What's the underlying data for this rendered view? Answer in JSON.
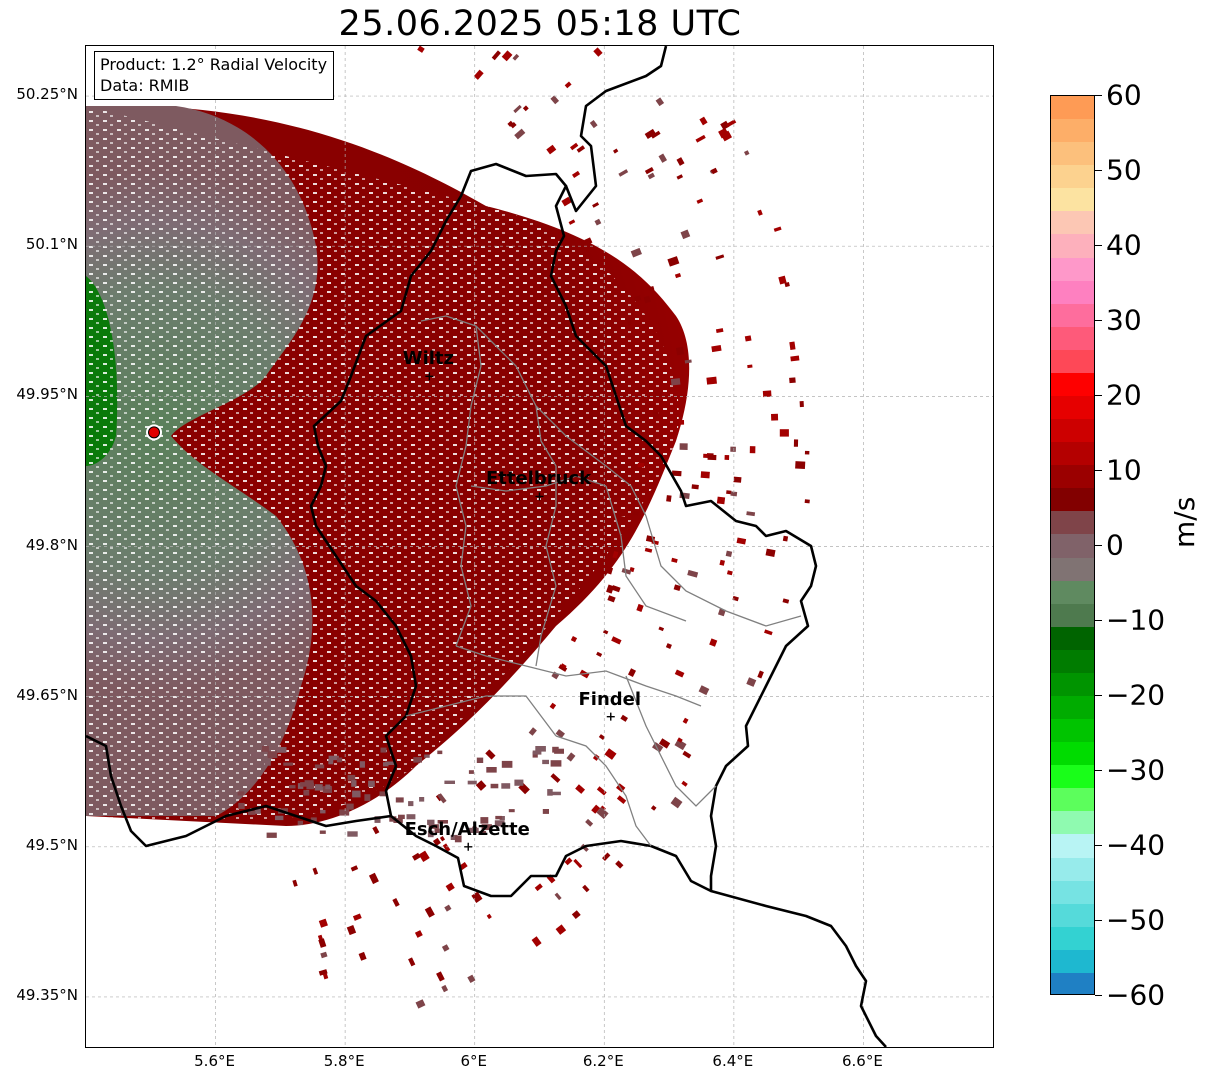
{
  "title": "25.06.2025 05:18 UTC",
  "info_box": {
    "product": "Product: 1.2° Radial Velocity",
    "data": "Data: RMIB"
  },
  "lat_labels": [
    "50.25°N",
    "50.1°N",
    "49.95°N",
    "49.8°N",
    "49.65°N",
    "49.5°N",
    "49.35°N"
  ],
  "lon_labels": [
    "5.6°E",
    "5.8°E",
    "6°E",
    "6.2°E",
    "6.4°E",
    "6.6°E"
  ],
  "cities": [
    {
      "name": "Wiltz",
      "lon": 5.93,
      "lat": 49.97
    },
    {
      "name": "Ettelbruck",
      "lon": 6.1,
      "lat": 49.85
    },
    {
      "name": "Findel",
      "lon": 6.21,
      "lat": 49.63
    },
    {
      "name": "Esch/Alzette",
      "lon": 5.99,
      "lat": 49.5
    }
  ],
  "colorbar": {
    "unit": "m/s",
    "min": -60,
    "max": 60,
    "ticks": [
      "60",
      "50",
      "40",
      "30",
      "20",
      "10",
      "0",
      "−10",
      "−20",
      "−30",
      "−40",
      "−50",
      "−60"
    ],
    "colors_top_to_bottom": [
      "#fe9b55",
      "#fdae68",
      "#fcc07c",
      "#fcd28f",
      "#fce3a1",
      "#fcc7b4",
      "#fdb0bc",
      "#fe98c9",
      "#fe80c0",
      "#fe6d9d",
      "#fe5a7a",
      "#fe4857",
      "#fe0000",
      "#e60000",
      "#cd0000",
      "#b40000",
      "#9b0000",
      "#820000",
      "#7f4449",
      "#806269",
      "#807373",
      "#5f8a60",
      "#4e7a4e",
      "#006400",
      "#007c00",
      "#009400",
      "#00ac00",
      "#00c400",
      "#00dc00",
      "#19fe19",
      "#5cfe5c",
      "#8ffab0",
      "#b8f4f4",
      "#97ebeb",
      "#76e3e3",
      "#55dada",
      "#33d2d2",
      "#1eb8d0",
      "#1f80c4"
    ]
  },
  "radar": {
    "site": {
      "lon": 5.505,
      "lat": 49.914
    },
    "site_color": "#e00000"
  },
  "map_extent": {
    "lon_min": 5.4,
    "lon_max": 6.8,
    "lat_min": 49.3,
    "lat_max": 50.3
  }
}
